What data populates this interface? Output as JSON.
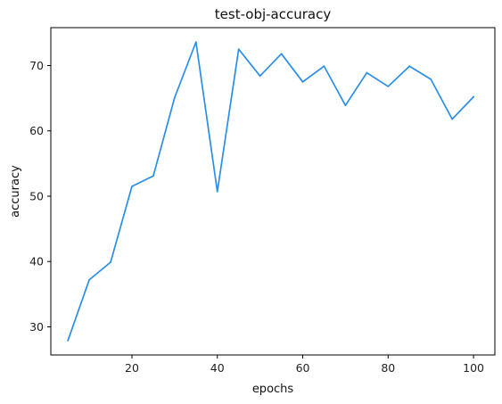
{
  "chart_data": {
    "type": "line",
    "title": "test-obj-accuracy",
    "xlabel": "epochs",
    "ylabel": "accuracy",
    "xlim": [
      1,
      105
    ],
    "ylim": [
      25.7,
      75.8
    ],
    "xticks": [
      20,
      40,
      60,
      80,
      100
    ],
    "yticks": [
      30,
      40,
      50,
      60,
      70
    ],
    "grid": false,
    "series": [
      {
        "color": "#2b8ee6",
        "x": [
          5,
          10,
          15,
          20,
          25,
          30,
          35,
          40,
          45,
          50,
          55,
          60,
          65,
          70,
          75,
          80,
          85,
          90,
          95,
          100
        ],
        "y": [
          27.9,
          37.2,
          39.9,
          51.5,
          53.1,
          65.1,
          73.6,
          50.7,
          72.5,
          68.4,
          71.8,
          67.5,
          69.9,
          63.9,
          68.9,
          66.8,
          69.9,
          67.9,
          61.8,
          65.2
        ]
      }
    ]
  }
}
